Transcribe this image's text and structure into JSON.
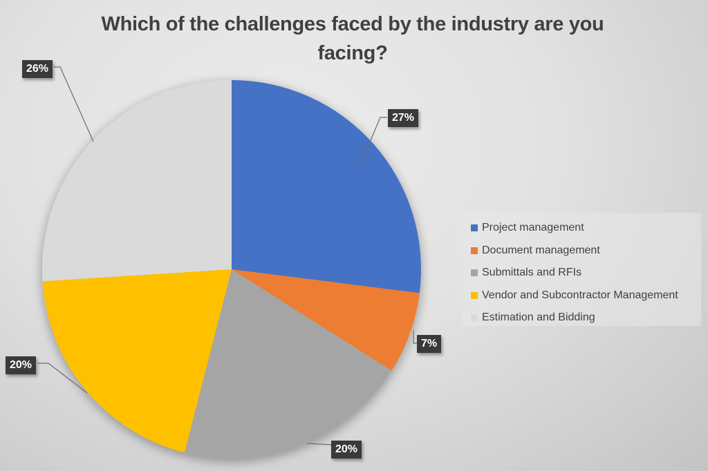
{
  "chart_data": {
    "type": "pie",
    "title": "Which of the challenges faced by the industry are you facing?",
    "categories": [
      "Project management",
      "Document management",
      "Submittals and RFIs",
      "Vendor and Subcontractor Management",
      "Estimation and Bidding"
    ],
    "values": [
      27,
      7,
      20,
      20,
      26
    ],
    "value_labels": [
      "27%",
      "7%",
      "20%",
      "20%",
      "26%"
    ],
    "colors": [
      "#4472C4",
      "#ED7D31",
      "#A5A5A5",
      "#FFC000",
      "#DADADA"
    ],
    "legend_position": "right",
    "start_angle_deg": 0,
    "direction": "clockwise"
  },
  "title": "Which of the challenges faced by the industry are you facing?",
  "legend": {
    "items": [
      {
        "label": "Project management",
        "color": "#4472C4"
      },
      {
        "label": "Document management",
        "color": "#ED7D31"
      },
      {
        "label": "Submittals and RFIs",
        "color": "#A5A5A5"
      },
      {
        "label": "Vendor and Subcontractor Management",
        "color": "#FFC000"
      },
      {
        "label": "Estimation and Bidding",
        "color": "#DADADA"
      }
    ]
  },
  "data_labels": [
    "27%",
    "7%",
    "20%",
    "20%",
    "26%"
  ]
}
